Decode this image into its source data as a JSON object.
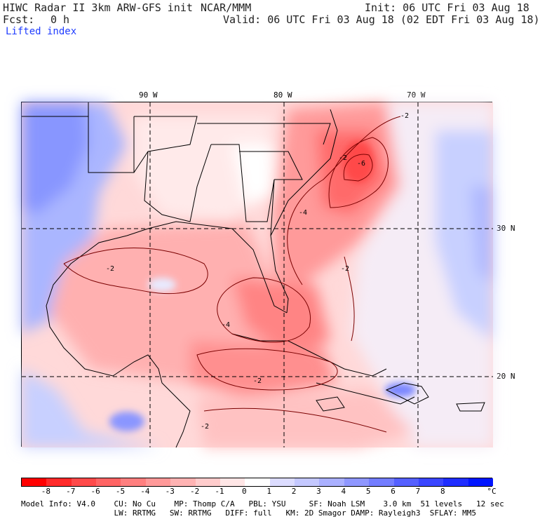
{
  "header": {
    "title": "HIWC Radar II 3km ARW-GFS init",
    "org": "NCAR/MMM",
    "init": "Init: 06 UTC Fri 03 Aug 18",
    "fcst_label": "Fcst:",
    "fcst_value": "0 h",
    "valid": "Valid: 06 UTC Fri 03 Aug 18 (02 EDT Fri 03 Aug 18)",
    "field": "Lifted index"
  },
  "map": {
    "lon_labels": [
      "90 W",
      "80 W",
      "70 W"
    ],
    "lat_labels": [
      "30 N",
      "20 N"
    ],
    "contour_labels": [
      "-2",
      "-4",
      "-6"
    ]
  },
  "colorbar": {
    "ticks": [
      "-8",
      "-7",
      "-6",
      "-5",
      "-4",
      "-3",
      "-2",
      "-1",
      "0",
      "1",
      "2",
      "3",
      "4",
      "5",
      "6",
      "7",
      "8"
    ],
    "unit": "°C",
    "colors": [
      "#ff0000",
      "#ff2a2a",
      "#ff4a4a",
      "#ff6464",
      "#ff7f7f",
      "#ff9999",
      "#ffb3b3",
      "#ffcccc",
      "#ffe6e6",
      "#ffffff",
      "#dcdcff",
      "#c4c8ff",
      "#aab0ff",
      "#8f97ff",
      "#737dff",
      "#5560ff",
      "#3a45ff",
      "#1f2dff",
      "#0015ff"
    ]
  },
  "footer": {
    "line1": "Model Info: V4.0    CU: No Cu    MP: Thomp C/A   PBL: YSU     SF: Noah LSM    3.0 km  51 levels   12 sec",
    "line2": "                    LW: RRTMG   SW: RRTMG   DIFF: full   KM: 2D Smagor DAMP: Rayleigh3  SFLAY: MM5"
  }
}
